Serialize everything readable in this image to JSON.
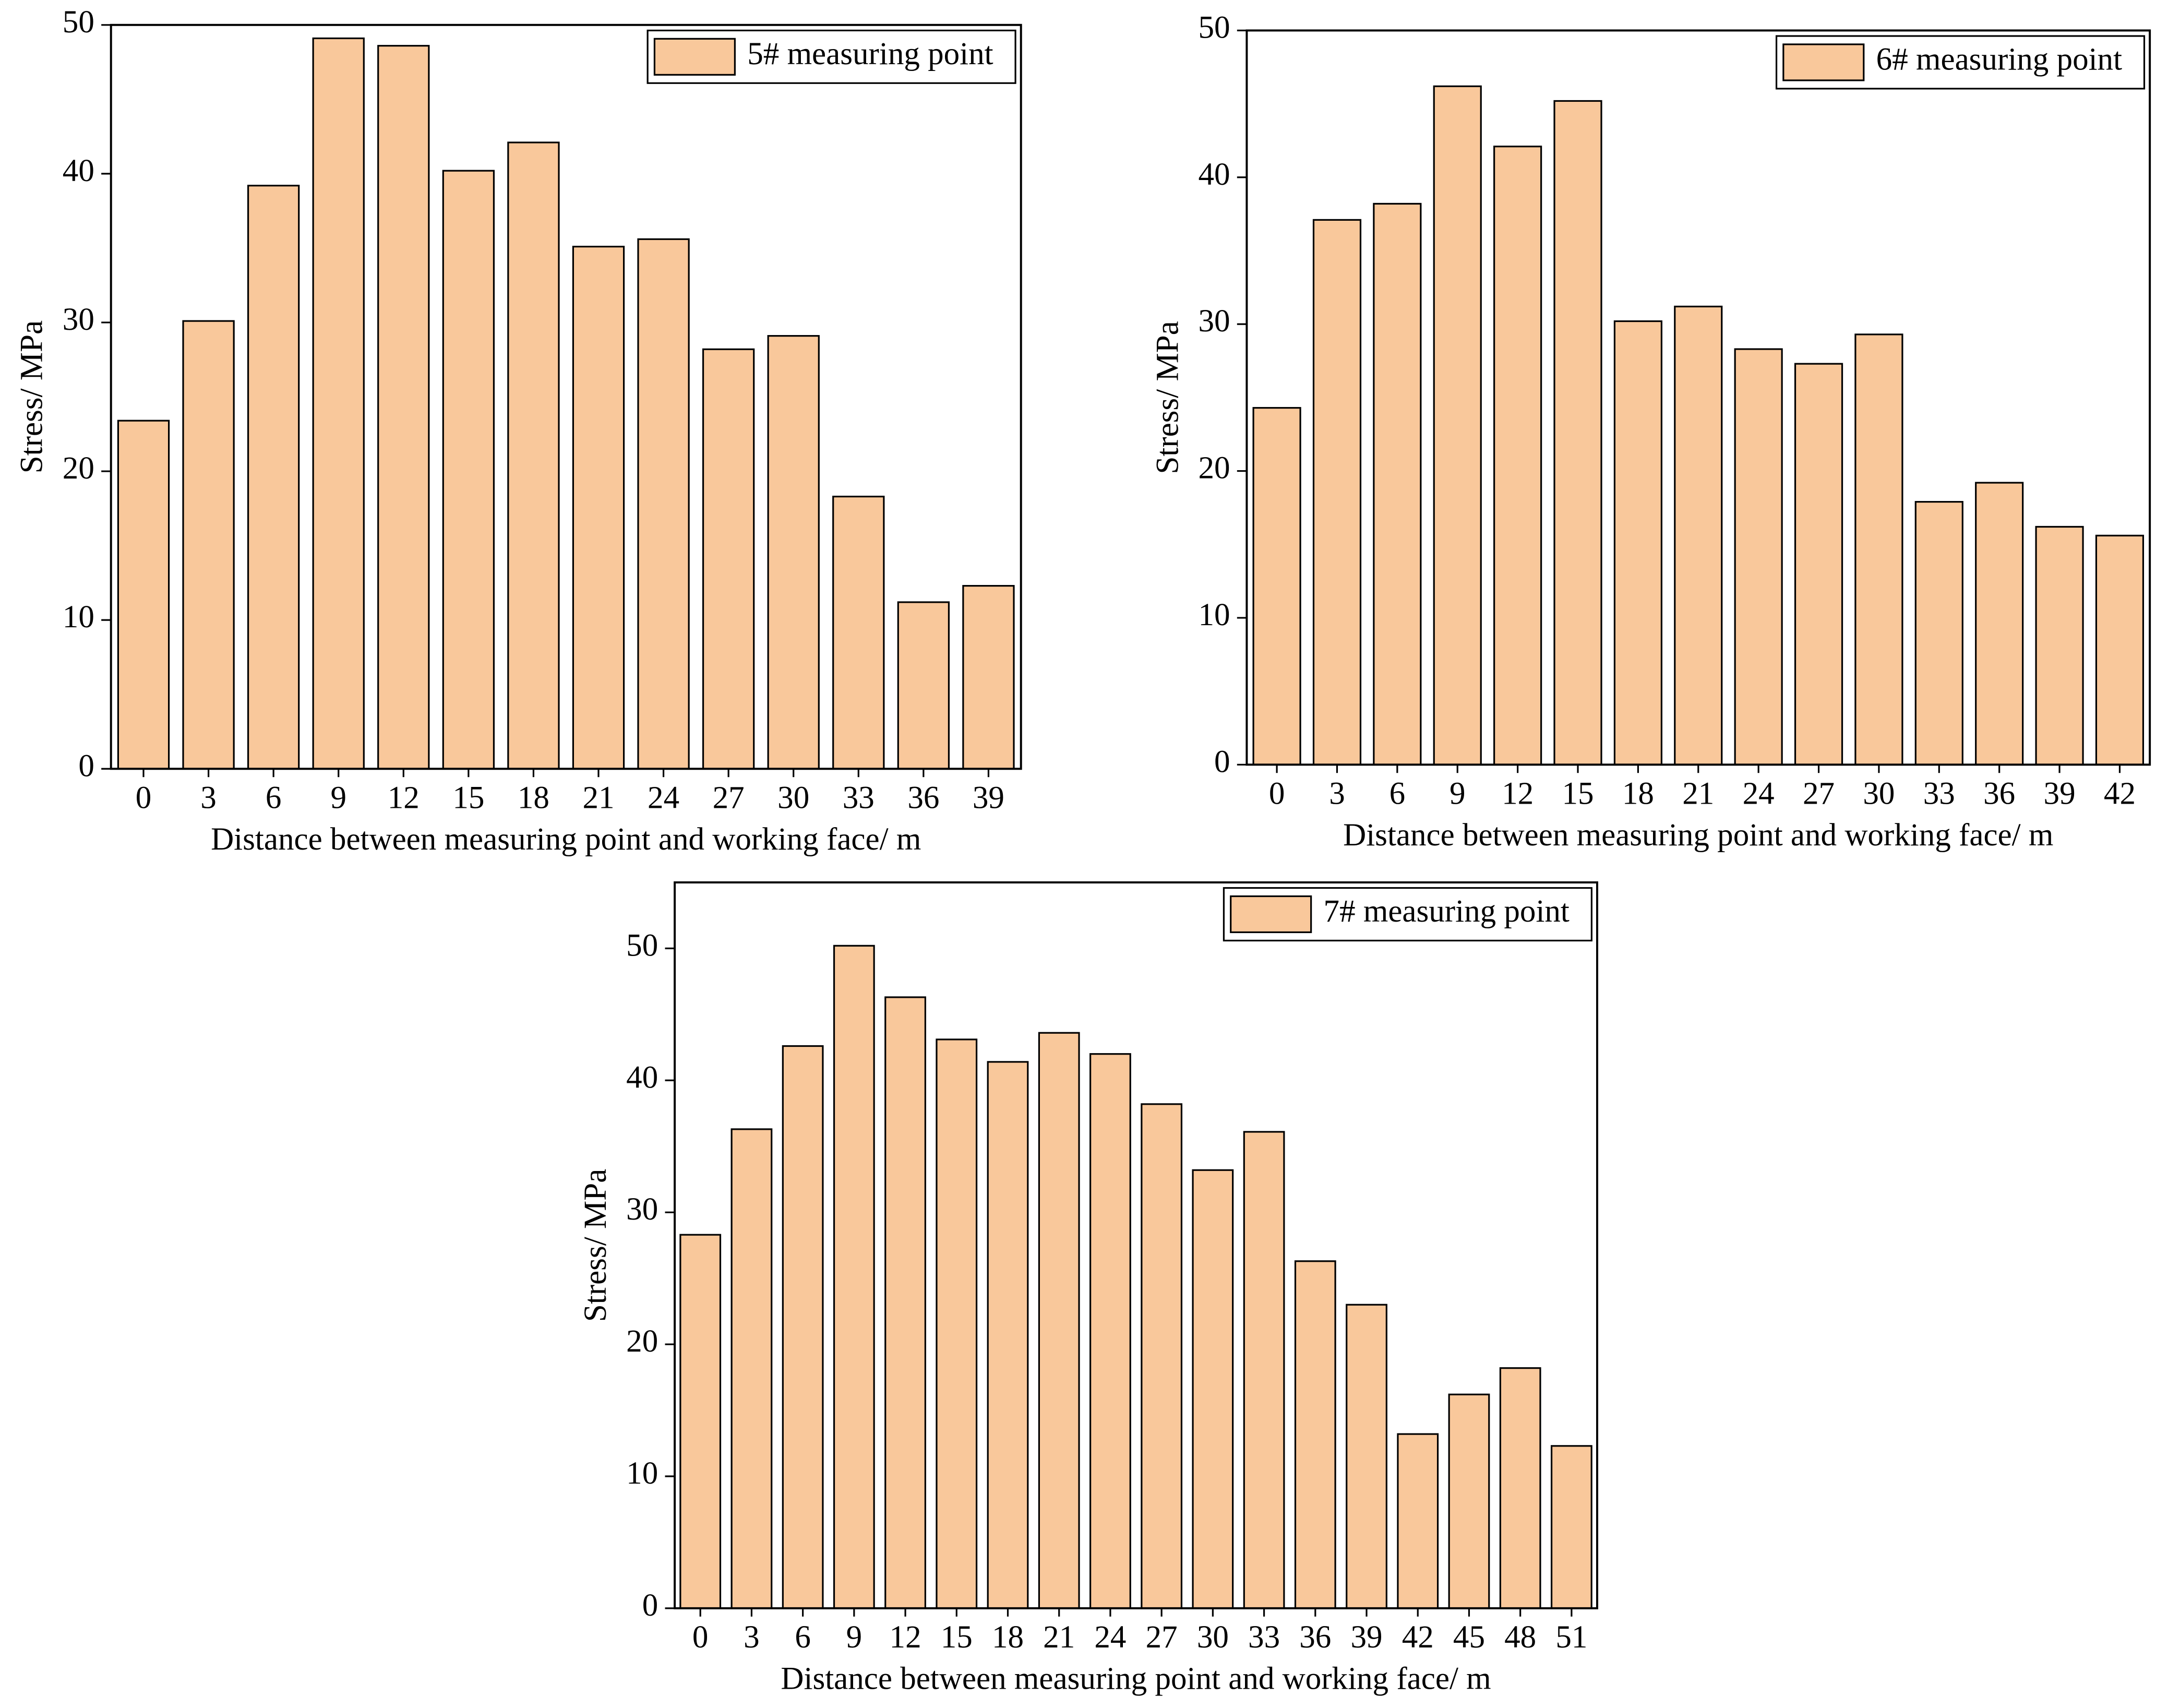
{
  "chart_data": [
    {
      "type": "bar",
      "xlabel": "Distance between measuring point and working face/ m",
      "ylabel": "Stress/ MPa",
      "categories": [
        0,
        3,
        6,
        9,
        12,
        15,
        18,
        21,
        24,
        27,
        30,
        33,
        36,
        39
      ],
      "series": [
        {
          "name": "5# measuring point",
          "color": "#f9c89b",
          "values": [
            23.4,
            30.1,
            39.2,
            49.1,
            48.6,
            40.2,
            42.1,
            35.1,
            35.6,
            28.2,
            29.1,
            18.3,
            11.2,
            12.3
          ]
        }
      ],
      "ylim": [
        0,
        50
      ],
      "yticks": [
        0,
        10,
        20,
        30,
        40,
        50
      ],
      "grid": false,
      "legend": "upper right"
    },
    {
      "type": "bar",
      "xlabel": "Distance between measuring point and working face/ m",
      "ylabel": "Stress/ MPa",
      "categories": [
        0,
        3,
        6,
        9,
        12,
        15,
        18,
        21,
        24,
        27,
        30,
        33,
        36,
        39,
        42
      ],
      "series": [
        {
          "name": "6# measuring point",
          "color": "#f9c89b",
          "values": [
            24.3,
            37.1,
            38.2,
            46.2,
            42.1,
            45.2,
            30.2,
            31.2,
            28.3,
            27.3,
            29.3,
            17.9,
            19.2,
            16.2,
            15.6
          ]
        }
      ],
      "ylim": [
        0,
        50
      ],
      "yticks": [
        0,
        10,
        20,
        30,
        40,
        50
      ],
      "grid": false,
      "legend": "upper right"
    },
    {
      "type": "bar",
      "xlabel": "Distance between measuring point and working face/ m",
      "ylabel": "Stress/ MPa",
      "categories": [
        0,
        3,
        6,
        9,
        12,
        15,
        18,
        21,
        24,
        27,
        30,
        33,
        36,
        39,
        42,
        45,
        48,
        51
      ],
      "series": [
        {
          "name": "7# measuring point",
          "color": "#f9c89b",
          "values": [
            28.3,
            36.3,
            42.6,
            50.2,
            46.3,
            43.1,
            41.4,
            43.6,
            42.0,
            38.2,
            33.2,
            36.1,
            26.3,
            23.0,
            13.2,
            16.2,
            18.2,
            12.3
          ]
        }
      ],
      "ylim": [
        0,
        55
      ],
      "yticks": [
        0,
        10,
        20,
        30,
        40,
        50
      ],
      "grid": false,
      "legend": "upper right"
    }
  ]
}
